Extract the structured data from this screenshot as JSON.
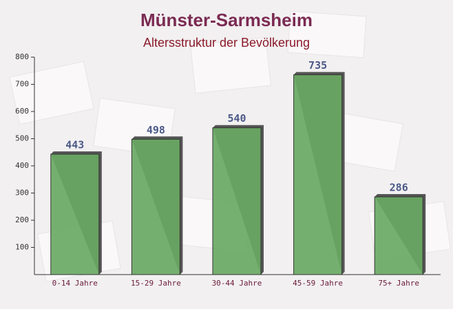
{
  "chart_data": {
    "type": "bar",
    "title": "Münster-Sarmsheim",
    "subtitle": "Altersstruktur der Bevölkerung",
    "categories": [
      "0-14 Jahre",
      "15-29 Jahre",
      "30-44 Jahre",
      "45-59 Jahre",
      "75+ Jahre"
    ],
    "values": [
      443,
      498,
      540,
      735,
      286
    ],
    "color": "#6aa964",
    "ylim": [
      0,
      800
    ],
    "yticks": [
      100,
      200,
      300,
      400,
      500,
      600,
      700,
      800
    ],
    "grid": false
  }
}
